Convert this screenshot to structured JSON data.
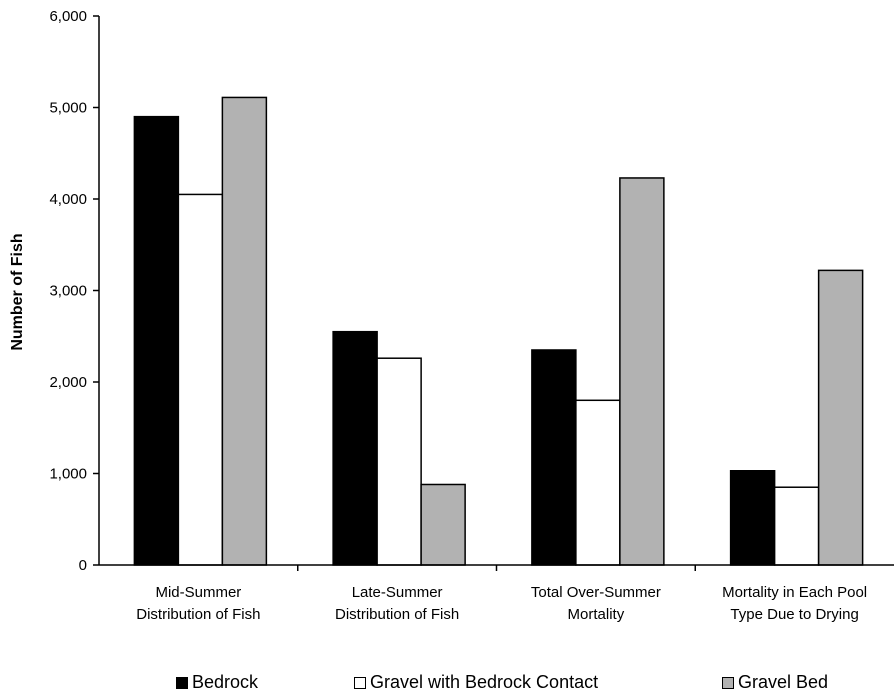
{
  "chart_data": {
    "type": "bar",
    "categories": [
      [
        "Mid-Summer",
        "Distribution of Fish"
      ],
      [
        "Late-Summer",
        "Distribution of Fish"
      ],
      [
        "Total Over-Summer",
        "Mortality"
      ],
      [
        "Mortality in Each Pool",
        "Type Due to Drying"
      ]
    ],
    "series": [
      {
        "name": "Bedrock",
        "color": "#000000",
        "values": [
          4900,
          2550,
          2350,
          1030
        ]
      },
      {
        "name": "Gravel with Bedrock Contact",
        "color": "#ffffff",
        "values": [
          4050,
          2260,
          1800,
          850
        ]
      },
      {
        "name": "Gravel Bed",
        "color": "#b2b2b2",
        "values": [
          5110,
          880,
          4230,
          3220
        ]
      }
    ],
    "xlabel": "",
    "ylabel": "Number of Fish",
    "ylim": [
      0,
      6000
    ],
    "yticks": [
      "0",
      "1,000",
      "2,000",
      "3,000",
      "4,000",
      "5,000",
      "6,000"
    ],
    "ytick_values": [
      0,
      1000,
      2000,
      3000,
      4000,
      5000,
      6000
    ],
    "grid": false,
    "legend_position": "bottom"
  }
}
